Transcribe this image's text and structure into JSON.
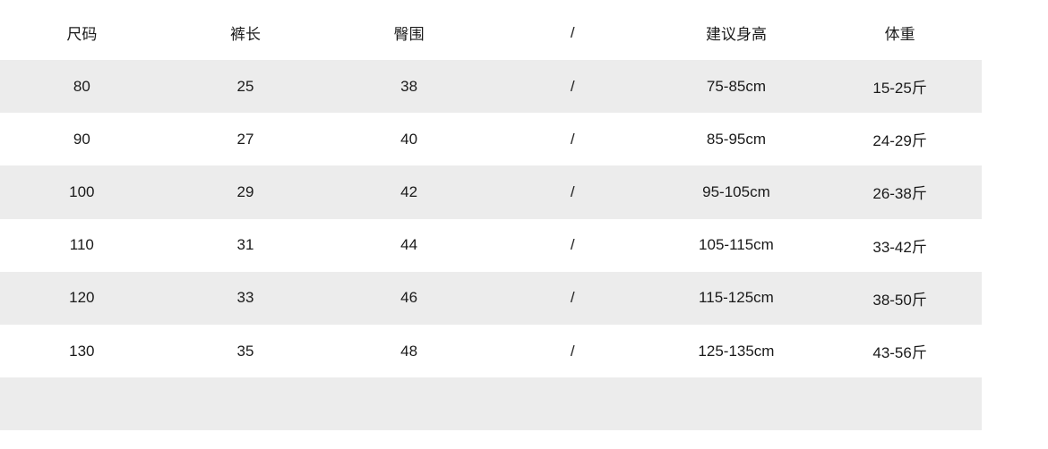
{
  "headers": [
    "尺码",
    "裤长",
    "臀围",
    "/",
    "建议身高",
    "体重"
  ],
  "rows": [
    [
      "80",
      "25",
      "38",
      "/",
      "75-85cm",
      "15-25斤"
    ],
    [
      "90",
      "27",
      "40",
      "/",
      "85-95cm",
      "24-29斤"
    ],
    [
      "100",
      "29",
      "42",
      "/",
      "95-105cm",
      "26-38斤"
    ],
    [
      "110",
      "31",
      "44",
      "/",
      "105-115cm",
      "33-42斤"
    ],
    [
      "120",
      "33",
      "46",
      "/",
      "115-125cm",
      "38-50斤"
    ],
    [
      "130",
      "35",
      "48",
      "/",
      "125-135cm",
      "43-56斤"
    ],
    [
      "",
      "",
      "",
      "",
      "",
      ""
    ]
  ],
  "colors": {
    "stripe": "#ececec",
    "text": "#1a1a1a"
  }
}
